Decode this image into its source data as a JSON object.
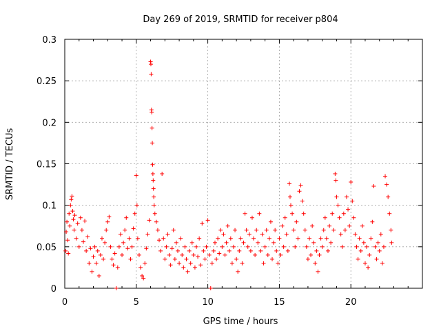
{
  "chart_data": {
    "type": "scatter",
    "title": "Day 269 of 2019, SRMTID for receiver p804",
    "xlabel": "GPS time / hours",
    "ylabel": "SRMTID / TECUs",
    "xlim": [
      0,
      25
    ],
    "ylim": [
      0,
      0.3
    ],
    "x_ticks": [
      0,
      5,
      10,
      15,
      20
    ],
    "x_tick_labels": [
      "0",
      "5",
      "10",
      "15",
      "20"
    ],
    "y_ticks": [
      0,
      0.05,
      0.1,
      0.15,
      0.2,
      0.25,
      0.3
    ],
    "y_tick_labels": [
      "0",
      "0.05",
      "0.1",
      "0.15",
      "0.2",
      "0.25",
      "0.3"
    ],
    "grid": true,
    "marker": "+",
    "series": [
      {
        "name": "SRMTID",
        "color": "#ff0000",
        "points": [
          [
            0.05,
            0.045
          ],
          [
            0.1,
            0.068
          ],
          [
            0.15,
            0.08
          ],
          [
            0.2,
            0.058
          ],
          [
            0.25,
            0.042
          ],
          [
            0.3,
            0.09
          ],
          [
            0.35,
            0.075
          ],
          [
            0.4,
            0.1
          ],
          [
            0.45,
            0.107
          ],
          [
            0.5,
            0.111
          ],
          [
            0.55,
            0.093
          ],
          [
            0.6,
            0.083
          ],
          [
            0.65,
            0.07
          ],
          [
            0.7,
            0.088
          ],
          [
            0.8,
            0.06
          ],
          [
            0.9,
            0.078
          ],
          [
            1.0,
            0.05
          ],
          [
            1.1,
            0.085
          ],
          [
            1.2,
            0.07
          ],
          [
            1.3,
            0.056
          ],
          [
            1.4,
            0.081
          ],
          [
            1.5,
            0.045
          ],
          [
            1.6,
            0.062
          ],
          [
            1.7,
            0.03
          ],
          [
            1.8,
            0.048
          ],
          [
            1.9,
            0.02
          ],
          [
            2.0,
            0.038
          ],
          [
            2.1,
            0.05
          ],
          [
            2.2,
            0.03
          ],
          [
            2.3,
            0.045
          ],
          [
            2.4,
            0.015
          ],
          [
            2.5,
            0.04
          ],
          [
            2.6,
            0.06
          ],
          [
            2.7,
            0.035
          ],
          [
            2.8,
            0.055
          ],
          [
            2.9,
            0.07
          ],
          [
            3.0,
            0.08
          ],
          [
            3.1,
            0.086
          ],
          [
            3.2,
            0.05
          ],
          [
            3.3,
            0.035
          ],
          [
            3.4,
            0.028
          ],
          [
            3.5,
            0.042
          ],
          [
            3.6,
            0.0
          ],
          [
            3.7,
            0.025
          ],
          [
            3.8,
            0.05
          ],
          [
            3.9,
            0.065
          ],
          [
            4.0,
            0.04
          ],
          [
            4.1,
            0.055
          ],
          [
            4.2,
            0.07
          ],
          [
            4.3,
            0.085
          ],
          [
            4.4,
            0.048
          ],
          [
            4.5,
            0.06
          ],
          [
            4.6,
            0.035
          ],
          [
            4.7,
            0.05
          ],
          [
            4.8,
            0.072
          ],
          [
            4.9,
            0.09
          ],
          [
            5.0,
            0.136
          ],
          [
            5.05,
            0.1
          ],
          [
            5.1,
            0.06
          ],
          [
            5.2,
            0.04
          ],
          [
            5.3,
            0.025
          ],
          [
            5.4,
            0.015
          ],
          [
            5.5,
            0.012
          ],
          [
            5.6,
            0.03
          ],
          [
            5.7,
            0.048
          ],
          [
            5.8,
            0.065
          ],
          [
            5.9,
            0.082
          ],
          [
            6.0,
            0.273
          ],
          [
            6.02,
            0.27
          ],
          [
            6.04,
            0.258
          ],
          [
            6.06,
            0.215
          ],
          [
            6.08,
            0.212
          ],
          [
            6.1,
            0.193
          ],
          [
            6.12,
            0.175
          ],
          [
            6.14,
            0.149
          ],
          [
            6.16,
            0.138
          ],
          [
            6.18,
            0.13
          ],
          [
            6.2,
            0.12
          ],
          [
            6.22,
            0.11
          ],
          [
            6.25,
            0.1
          ],
          [
            6.3,
            0.09
          ],
          [
            6.4,
            0.08
          ],
          [
            6.5,
            0.07
          ],
          [
            6.6,
            0.058
          ],
          [
            6.7,
            0.045
          ],
          [
            6.8,
            0.138
          ],
          [
            6.9,
            0.06
          ],
          [
            7.0,
            0.035
          ],
          [
            7.1,
            0.05
          ],
          [
            7.2,
            0.065
          ],
          [
            7.3,
            0.04
          ],
          [
            7.4,
            0.028
          ],
          [
            7.5,
            0.048
          ],
          [
            7.6,
            0.07
          ],
          [
            7.7,
            0.035
          ],
          [
            7.8,
            0.055
          ],
          [
            7.9,
            0.045
          ],
          [
            8.0,
            0.03
          ],
          [
            8.1,
            0.06
          ],
          [
            8.2,
            0.04
          ],
          [
            8.3,
            0.025
          ],
          [
            8.4,
            0.05
          ],
          [
            8.5,
            0.035
          ],
          [
            8.6,
            0.02
          ],
          [
            8.7,
            0.045
          ],
          [
            8.8,
            0.03
          ],
          [
            8.9,
            0.055
          ],
          [
            9.0,
            0.04
          ],
          [
            9.1,
            0.025
          ],
          [
            9.2,
            0.05
          ],
          [
            9.3,
            0.038
          ],
          [
            9.4,
            0.06
          ],
          [
            9.5,
            0.028
          ],
          [
            9.6,
            0.078
          ],
          [
            9.7,
            0.045
          ],
          [
            9.8,
            0.035
          ],
          [
            9.9,
            0.05
          ],
          [
            10.0,
            0.082
          ],
          [
            10.1,
            0.04
          ],
          [
            10.2,
            0.0
          ],
          [
            10.3,
            0.03
          ],
          [
            10.4,
            0.045
          ],
          [
            10.5,
            0.055
          ],
          [
            10.6,
            0.035
          ],
          [
            10.7,
            0.06
          ],
          [
            10.8,
            0.042
          ],
          [
            10.9,
            0.07
          ],
          [
            11.0,
            0.05
          ],
          [
            11.1,
            0.065
          ],
          [
            11.2,
            0.04
          ],
          [
            11.3,
            0.055
          ],
          [
            11.4,
            0.075
          ],
          [
            11.5,
            0.045
          ],
          [
            11.6,
            0.06
          ],
          [
            11.7,
            0.03
          ],
          [
            11.8,
            0.05
          ],
          [
            11.9,
            0.07
          ],
          [
            12.0,
            0.035
          ],
          [
            12.1,
            0.02
          ],
          [
            12.2,
            0.045
          ],
          [
            12.3,
            0.06
          ],
          [
            12.4,
            0.03
          ],
          [
            12.5,
            0.055
          ],
          [
            12.6,
            0.09
          ],
          [
            12.7,
            0.07
          ],
          [
            12.8,
            0.05
          ],
          [
            12.9,
            0.065
          ],
          [
            13.0,
            0.045
          ],
          [
            13.1,
            0.085
          ],
          [
            13.2,
            0.06
          ],
          [
            13.3,
            0.04
          ],
          [
            13.4,
            0.07
          ],
          [
            13.5,
            0.055
          ],
          [
            13.6,
            0.09
          ],
          [
            13.7,
            0.045
          ],
          [
            13.8,
            0.065
          ],
          [
            13.9,
            0.03
          ],
          [
            14.0,
            0.05
          ],
          [
            14.1,
            0.07
          ],
          [
            14.2,
            0.04
          ],
          [
            14.3,
            0.06
          ],
          [
            14.4,
            0.08
          ],
          [
            14.5,
            0.035
          ],
          [
            14.6,
            0.055
          ],
          [
            14.7,
            0.07
          ],
          [
            14.8,
            0.045
          ],
          [
            14.9,
            0.03
          ],
          [
            15.0,
            0.06
          ],
          [
            15.1,
            0.04
          ],
          [
            15.2,
            0.075
          ],
          [
            15.3,
            0.05
          ],
          [
            15.4,
            0.085
          ],
          [
            15.5,
            0.065
          ],
          [
            15.6,
            0.045
          ],
          [
            15.7,
            0.126
          ],
          [
            15.75,
            0.11
          ],
          [
            15.8,
            0.1
          ],
          [
            15.9,
            0.09
          ],
          [
            16.0,
            0.07
          ],
          [
            16.1,
            0.05
          ],
          [
            16.2,
            0.08
          ],
          [
            16.3,
            0.06
          ],
          [
            16.4,
            0.117
          ],
          [
            16.5,
            0.124
          ],
          [
            16.6,
            0.105
          ],
          [
            16.7,
            0.09
          ],
          [
            16.8,
            0.07
          ],
          [
            16.9,
            0.05
          ],
          [
            17.0,
            0.035
          ],
          [
            17.1,
            0.06
          ],
          [
            17.2,
            0.04
          ],
          [
            17.3,
            0.075
          ],
          [
            17.4,
            0.055
          ],
          [
            17.5,
            0.03
          ],
          [
            17.6,
            0.045
          ],
          [
            17.7,
            0.02
          ],
          [
            17.8,
            0.04
          ],
          [
            17.9,
            0.06
          ],
          [
            18.0,
            0.05
          ],
          [
            18.1,
            0.07
          ],
          [
            18.2,
            0.085
          ],
          [
            18.3,
            0.06
          ],
          [
            18.4,
            0.045
          ],
          [
            18.5,
            0.075
          ],
          [
            18.6,
            0.055
          ],
          [
            18.7,
            0.09
          ],
          [
            18.8,
            0.07
          ],
          [
            18.9,
            0.138
          ],
          [
            18.95,
            0.13
          ],
          [
            19.0,
            0.11
          ],
          [
            19.1,
            0.1
          ],
          [
            19.2,
            0.085
          ],
          [
            19.3,
            0.065
          ],
          [
            19.4,
            0.05
          ],
          [
            19.5,
            0.09
          ],
          [
            19.6,
            0.07
          ],
          [
            19.7,
            0.11
          ],
          [
            19.8,
            0.095
          ],
          [
            19.9,
            0.075
          ],
          [
            20.0,
            0.128
          ],
          [
            20.1,
            0.105
          ],
          [
            20.2,
            0.085
          ],
          [
            20.3,
            0.065
          ],
          [
            20.4,
            0.05
          ],
          [
            20.5,
            0.035
          ],
          [
            20.6,
            0.06
          ],
          [
            20.7,
            0.045
          ],
          [
            20.8,
            0.075
          ],
          [
            20.9,
            0.055
          ],
          [
            21.0,
            0.03
          ],
          [
            21.1,
            0.05
          ],
          [
            21.2,
            0.025
          ],
          [
            21.3,
            0.04
          ],
          [
            21.4,
            0.06
          ],
          [
            21.5,
            0.08
          ],
          [
            21.6,
            0.123
          ],
          [
            21.7,
            0.05
          ],
          [
            21.8,
            0.035
          ],
          [
            21.9,
            0.055
          ],
          [
            22.0,
            0.045
          ],
          [
            22.1,
            0.065
          ],
          [
            22.2,
            0.03
          ],
          [
            22.3,
            0.05
          ],
          [
            22.4,
            0.135
          ],
          [
            22.5,
            0.125
          ],
          [
            22.6,
            0.11
          ],
          [
            22.7,
            0.09
          ],
          [
            22.8,
            0.07
          ],
          [
            22.85,
            0.055
          ]
        ]
      }
    ]
  }
}
